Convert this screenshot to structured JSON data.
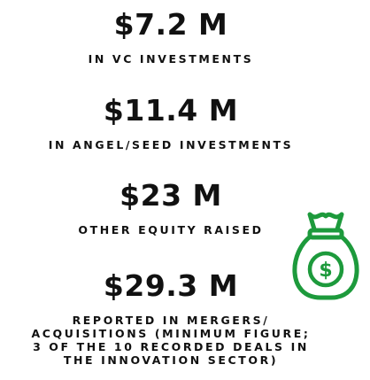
{
  "stats": [
    {
      "value": "$7.2 M",
      "label_lines": [
        "IN VC INVESTMENTS"
      ]
    },
    {
      "value": "$11.4 M",
      "label_lines": [
        "IN ANGEL/SEED INVESTMENTS"
      ]
    },
    {
      "value": "$23 M",
      "label_lines": [
        "OTHER EQUITY RAISED"
      ]
    },
    {
      "value": "$29.3 M",
      "label_lines": [
        "REPORTED IN MERGERS/",
        "ACQUISITIONS (MINIMUM FIGURE;",
        "3 OF THE 10 RECORDED DEALS IN",
        "THE INNOVATION SECTOR)"
      ]
    }
  ]
}
